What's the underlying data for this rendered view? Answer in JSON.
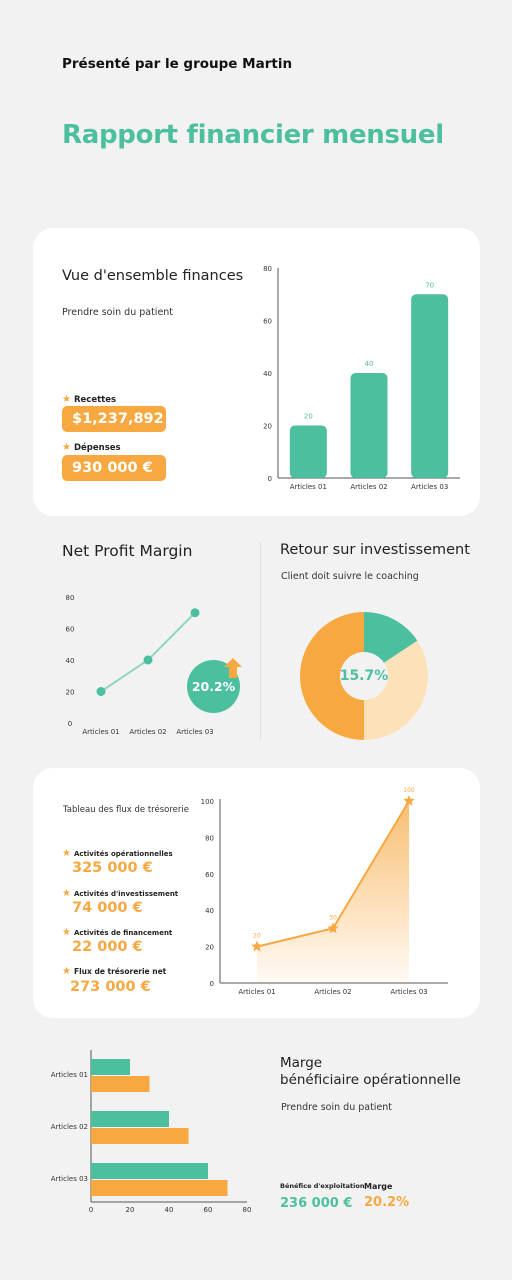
{
  "header": {
    "subtitle": "Présenté par le groupe Martin",
    "title": "Rapport financier mensuel"
  },
  "overview": {
    "title": "Vue d'ensemble finances",
    "note": "Prendre soin du patient",
    "income_label": "Recettes",
    "income_value": "$1,237,892",
    "expense_label": "Dépenses",
    "expense_value": "930 000 €"
  },
  "net_profit": {
    "title": "Net Profit Margin",
    "badge": "20.2%"
  },
  "roi": {
    "title": "Retour sur investissement",
    "note": "Client doit suivre le coaching",
    "center": "15.7%"
  },
  "cashflow": {
    "title": "Tableau des flux de trésorerie",
    "items": [
      {
        "label": "Activités opérationnelles",
        "value": "325 000 €"
      },
      {
        "label": "Activités d'investissement",
        "value": "74 000 €"
      },
      {
        "label": "Activités de financement",
        "value": "22 000 €"
      },
      {
        "label": "Flux de trésorerie net",
        "value": "273 000 €"
      }
    ]
  },
  "margin": {
    "title_line1": "Marge",
    "title_line2": "bénéficiaire opérationnelle",
    "note": "Prendre soin du patient",
    "profit_label": "Bénéfice d'exploitation",
    "profit_value": "236 000 €",
    "margin_label": "Marge",
    "margin_value": "20.2%"
  },
  "colors": {
    "green": "#4cbf9f",
    "orange": "#f7a841",
    "light_orange": "#fde1b8"
  },
  "chart_data": [
    {
      "type": "bar",
      "categories": [
        "Articles 01",
        "Articles 02",
        "Articles 03"
      ],
      "values": [
        20,
        40,
        70
      ],
      "ylim": [
        0,
        80
      ],
      "yticks": [
        0,
        20,
        40,
        60,
        80
      ],
      "data_labels": [
        "20",
        "40",
        "70"
      ]
    },
    {
      "type": "line",
      "categories": [
        "Articles 01",
        "Articles 02",
        "Articles 03"
      ],
      "values": [
        20,
        40,
        70
      ],
      "ylim": [
        0,
        80
      ],
      "yticks": [
        0,
        20,
        40,
        60,
        80
      ]
    },
    {
      "type": "pie",
      "values": [
        15.7,
        34.3,
        50
      ],
      "colors": [
        "#4cbf9f",
        "#fde1b8",
        "#f7a841"
      ],
      "donut": true
    },
    {
      "type": "area",
      "categories": [
        "Articles 01",
        "Articles 02",
        "Articles 03"
      ],
      "values": [
        20,
        30,
        100
      ],
      "ylim": [
        0,
        100
      ],
      "yticks": [
        0,
        20,
        40,
        60,
        80,
        100
      ],
      "data_labels": [
        "20",
        "30",
        "100"
      ]
    },
    {
      "type": "bar",
      "orientation": "horizontal",
      "categories": [
        "Articles 01",
        "Articles 02",
        "Articles 03"
      ],
      "series": [
        {
          "values": [
            20,
            40,
            60
          ],
          "color": "#4cbf9f"
        },
        {
          "values": [
            30,
            50,
            70
          ],
          "color": "#f7a841"
        }
      ],
      "xlim": [
        0,
        80
      ],
      "xticks": [
        0,
        20,
        40,
        60,
        80
      ]
    }
  ]
}
